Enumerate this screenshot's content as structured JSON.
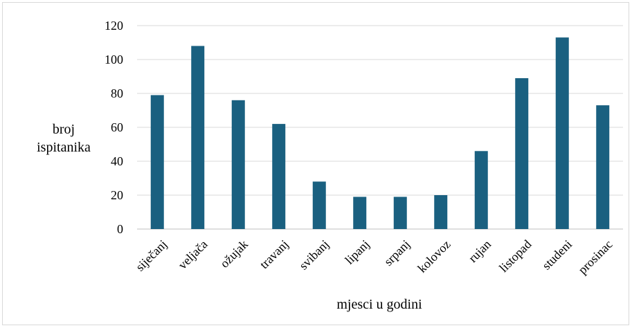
{
  "chart_data": {
    "type": "bar",
    "title": "",
    "ylabel": [
      "broj",
      "ispitanika"
    ],
    "xlabel": "mjesci u godini",
    "categories": [
      "siječanj",
      "veljača",
      "ožujak",
      "travanj",
      "svibanj",
      "lipanj",
      "srpanj",
      "kolovoz",
      "rujan",
      "listopad",
      "studeni",
      "prosinac"
    ],
    "values": [
      79,
      108,
      76,
      62,
      28,
      19,
      19,
      20,
      46,
      89,
      113,
      73
    ],
    "ylim": [
      0,
      120
    ],
    "yticks": [
      "0",
      "20",
      "40",
      "60",
      "80",
      "100",
      "120"
    ],
    "grid": true,
    "colors": {
      "bar": "#1a6080",
      "grid": "#d9d9d9",
      "axis": "#bfbfbf"
    }
  }
}
